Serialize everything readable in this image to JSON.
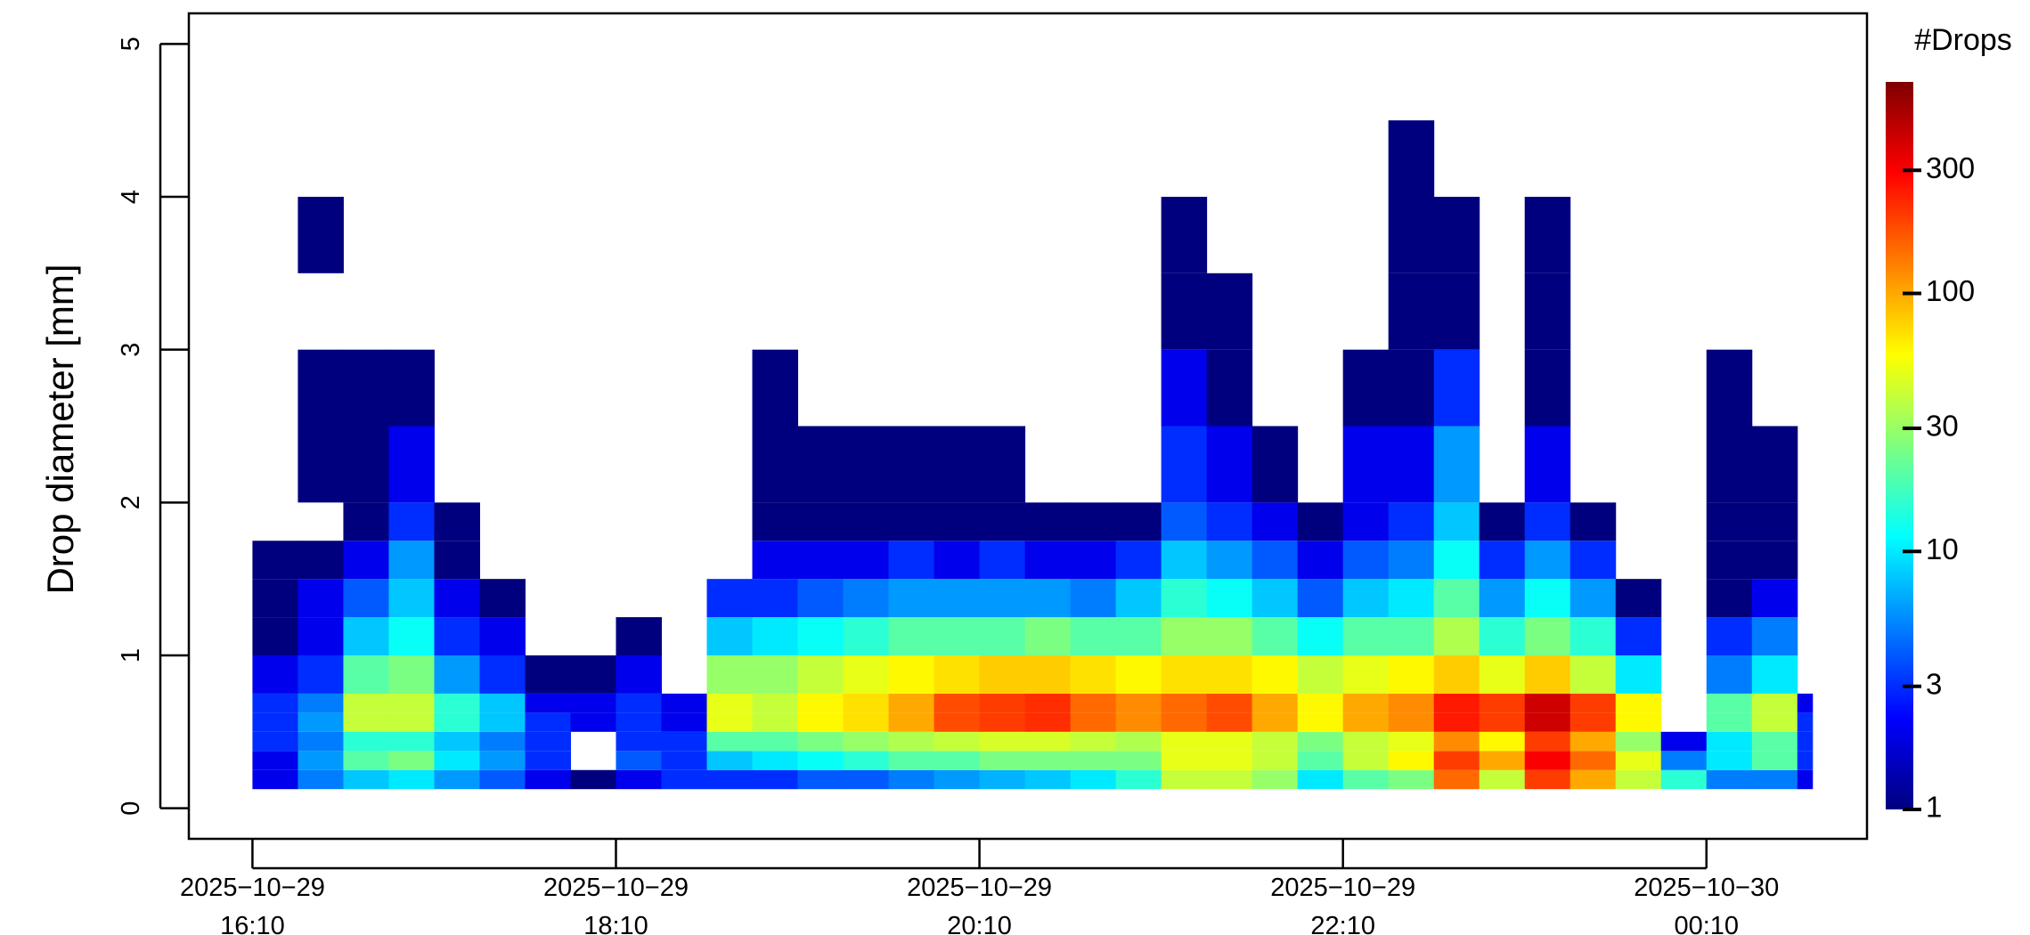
{
  "chart_data": {
    "type": "heatmap",
    "y_label": "Drop diameter [mm]",
    "colorbar_title": "#Drops",
    "xlim": [
      "2025-10-29T15:49",
      "2025-10-30T01:03"
    ],
    "xticks": [
      {
        "value": "2025-10-29T16:10",
        "label": [
          "2025−10−29",
          "16:10"
        ]
      },
      {
        "value": "2025-10-29T18:10",
        "label": [
          "2025−10−29",
          "18:10"
        ]
      },
      {
        "value": "2025-10-29T20:10",
        "label": [
          "2025−10−29",
          "20:10"
        ]
      },
      {
        "value": "2025-10-29T22:10",
        "label": [
          "2025−10−29",
          "22:10"
        ]
      },
      {
        "value": "2025-10-30T00:10",
        "label": [
          "2025−10−30",
          "00:10"
        ]
      }
    ],
    "ylim": [
      -0.2,
      5.2
    ],
    "yticks": [
      0,
      1,
      2,
      3,
      4,
      5
    ],
    "xbins": [
      "2025-10-29T16:10",
      "2025-10-29T16:25",
      "2025-10-29T16:40",
      "2025-10-29T16:55",
      "2025-10-29T17:10",
      "2025-10-29T17:25",
      "2025-10-29T17:40",
      "2025-10-29T17:55",
      "2025-10-29T18:10",
      "2025-10-29T18:25",
      "2025-10-29T18:40",
      "2025-10-29T18:55",
      "2025-10-29T19:10",
      "2025-10-29T19:25",
      "2025-10-29T19:40",
      "2025-10-29T19:55",
      "2025-10-29T20:10",
      "2025-10-29T20:25",
      "2025-10-29T20:40",
      "2025-10-29T20:55",
      "2025-10-29T21:10",
      "2025-10-29T21:25",
      "2025-10-29T21:40",
      "2025-10-29T21:55",
      "2025-10-29T22:10",
      "2025-10-29T22:25",
      "2025-10-29T22:40",
      "2025-10-29T22:55",
      "2025-10-29T23:10",
      "2025-10-29T23:25",
      "2025-10-29T23:40",
      "2025-10-29T23:55",
      "2025-10-30T00:10",
      "2025-10-30T00:25",
      "2025-10-30T00:40",
      "2025-10-30T00:45"
    ],
    "ybins": [
      0.125,
      0.25,
      0.375,
      0.5,
      0.625,
      0.75,
      1,
      1.25,
      1.5,
      1.75,
      2,
      2.5,
      3,
      3.5,
      4,
      4.5
    ],
    "z": [
      [
        2,
        2,
        3,
        3,
        3,
        2,
        1,
        1,
        1,
        null,
        null,
        null,
        null,
        null,
        null
      ],
      [
        5,
        6,
        5,
        6,
        5,
        3,
        2,
        2,
        1,
        null,
        1,
        1,
        null,
        1,
        null
      ],
      [
        8,
        20,
        15,
        40,
        40,
        20,
        8,
        4,
        2,
        1,
        1,
        1,
        null,
        null,
        null
      ],
      [
        10,
        25,
        15,
        40,
        40,
        25,
        12,
        8,
        6,
        3,
        2,
        1,
        null,
        null,
        null
      ],
      [
        6,
        10,
        8,
        15,
        15,
        6,
        3,
        2,
        1,
        1,
        null,
        null,
        null,
        null,
        null
      ],
      [
        4,
        6,
        5,
        8,
        8,
        3,
        2,
        1,
        null,
        null,
        null,
        null,
        null,
        null,
        null
      ],
      [
        2,
        3,
        3,
        3,
        2,
        1,
        null,
        null,
        null,
        null,
        null,
        null,
        null,
        null,
        null
      ],
      [
        1,
        null,
        null,
        2,
        2,
        1,
        null,
        null,
        null,
        null,
        null,
        null,
        null,
        null,
        null
      ],
      [
        2,
        4,
        3,
        3,
        3,
        2,
        1,
        null,
        null,
        null,
        null,
        null,
        null,
        null,
        null
      ],
      [
        3,
        3,
        3,
        2,
        2,
        null,
        null,
        null,
        null,
        null,
        null,
        null,
        null,
        null,
        null
      ],
      [
        3,
        8,
        20,
        50,
        50,
        30,
        8,
        3,
        null,
        null,
        null,
        null,
        null,
        null,
        null
      ],
      [
        3,
        10,
        20,
        40,
        40,
        30,
        10,
        3,
        2,
        1,
        1,
        1,
        null,
        null,
        null
      ],
      [
        4,
        12,
        25,
        60,
        60,
        40,
        12,
        4,
        2,
        1,
        1,
        null,
        null,
        null,
        null
      ],
      [
        4,
        15,
        30,
        70,
        70,
        50,
        15,
        5,
        2,
        1,
        1,
        null,
        null,
        null,
        null
      ],
      [
        5,
        20,
        35,
        100,
        100,
        60,
        20,
        6,
        3,
        1,
        1,
        null,
        null,
        null,
        null
      ],
      [
        6,
        20,
        40,
        180,
        180,
        70,
        20,
        6,
        2,
        1,
        1,
        null,
        null,
        null,
        null
      ],
      [
        7,
        25,
        45,
        200,
        200,
        80,
        20,
        6,
        3,
        1,
        1,
        null,
        null,
        null,
        null
      ],
      [
        8,
        25,
        45,
        220,
        220,
        80,
        25,
        6,
        2,
        1,
        null,
        null,
        null,
        null,
        null
      ],
      [
        10,
        25,
        40,
        150,
        150,
        70,
        20,
        5,
        2,
        1,
        null,
        null,
        null,
        null,
        null
      ],
      [
        15,
        25,
        35,
        120,
        120,
        60,
        20,
        8,
        3,
        1,
        null,
        null,
        null,
        null,
        null
      ],
      [
        40,
        50,
        50,
        150,
        150,
        70,
        30,
        15,
        8,
        4,
        3,
        2,
        1,
        1,
        null
      ],
      [
        40,
        50,
        50,
        180,
        180,
        70,
        30,
        12,
        6,
        3,
        2,
        1,
        1,
        null,
        null
      ],
      [
        30,
        40,
        40,
        100,
        100,
        60,
        20,
        8,
        4,
        2,
        1,
        null,
        null,
        null,
        null
      ],
      [
        10,
        20,
        25,
        60,
        60,
        40,
        12,
        4,
        2,
        1,
        null,
        null,
        null,
        null,
        null
      ],
      [
        20,
        40,
        40,
        100,
        100,
        50,
        20,
        8,
        4,
        2,
        2,
        1,
        null,
        null,
        null
      ],
      [
        25,
        60,
        50,
        120,
        120,
        60,
        20,
        10,
        5,
        3,
        2,
        1,
        1,
        1,
        1
      ],
      [
        150,
        200,
        120,
        250,
        250,
        80,
        35,
        20,
        12,
        8,
        6,
        3,
        1,
        1,
        null
      ],
      [
        40,
        100,
        60,
        200,
        200,
        50,
        15,
        6,
        3,
        1,
        null,
        null,
        null,
        null,
        null
      ],
      [
        200,
        300,
        200,
        400,
        400,
        80,
        25,
        12,
        6,
        3,
        2,
        1,
        1,
        1,
        null
      ],
      [
        100,
        150,
        100,
        200,
        200,
        40,
        15,
        6,
        3,
        1,
        null,
        null,
        null,
        null,
        null
      ],
      [
        40,
        50,
        30,
        60,
        60,
        10,
        3,
        1,
        null,
        null,
        null,
        null,
        null,
        null,
        null
      ],
      [
        15,
        5,
        2,
        null,
        null,
        null,
        null,
        null,
        null,
        null,
        null,
        null,
        null,
        null,
        null
      ],
      [
        5,
        10,
        10,
        20,
        20,
        5,
        3,
        1,
        1,
        1,
        1,
        1,
        null,
        null,
        null
      ],
      [
        5,
        20,
        20,
        40,
        40,
        10,
        5,
        2,
        1,
        1,
        1,
        null,
        null,
        null,
        null
      ],
      [
        2,
        3,
        3,
        3,
        2,
        null,
        null,
        null,
        null,
        null,
        null,
        null,
        null,
        null,
        null
      ]
    ],
    "zlim": [
      1,
      660
    ],
    "zticks": [
      1,
      3,
      10,
      30,
      100,
      300
    ],
    "color_log": true,
    "colormap": [
      "#00007F",
      "#0000FF",
      "#007FFF",
      "#00FFFF",
      "#7FFF7F",
      "#FFFF00",
      "#FF7F00",
      "#FF0000",
      "#7F0000"
    ]
  }
}
